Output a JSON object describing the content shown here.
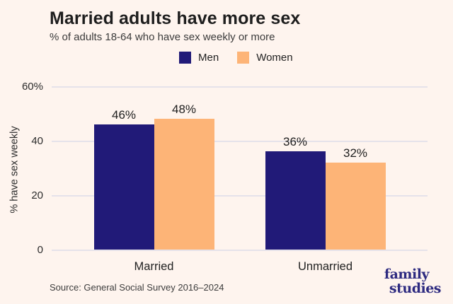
{
  "chart": {
    "title": "Married adults have more sex",
    "subtitle": "% of adults 18-64 who have sex weekly or more",
    "source": "Source: General Social Survey 2016–2024",
    "logo": {
      "line1": "family",
      "line2": "studies"
    }
  },
  "chart_data": {
    "type": "bar",
    "categories": [
      "Married",
      "Unmarried"
    ],
    "series": [
      {
        "name": "Men",
        "color": "#211a78",
        "values": [
          46,
          36
        ]
      },
      {
        "name": "Women",
        "color": "#fdb477",
        "values": [
          48,
          32
        ]
      }
    ],
    "value_labels": [
      [
        "46%",
        "36%"
      ],
      [
        "48%",
        "32%"
      ]
    ],
    "title": "Married adults have more sex",
    "xlabel": "",
    "ylabel": "% have sex weekly",
    "ylim": [
      0,
      60
    ],
    "yticks": [
      {
        "value": 0,
        "label": "0"
      },
      {
        "value": 20,
        "label": "20"
      },
      {
        "value": 40,
        "label": "40"
      },
      {
        "value": 60,
        "label": "60%"
      }
    ],
    "grid": true,
    "legend_position": "top-center"
  },
  "colors": {
    "background": "#fef4ee",
    "men_bar": "#211a78",
    "women_bar": "#fdb477",
    "gridline": "#e5e2ea",
    "title_text": "#1e1e1e",
    "logo_text": "#2d2a80"
  }
}
